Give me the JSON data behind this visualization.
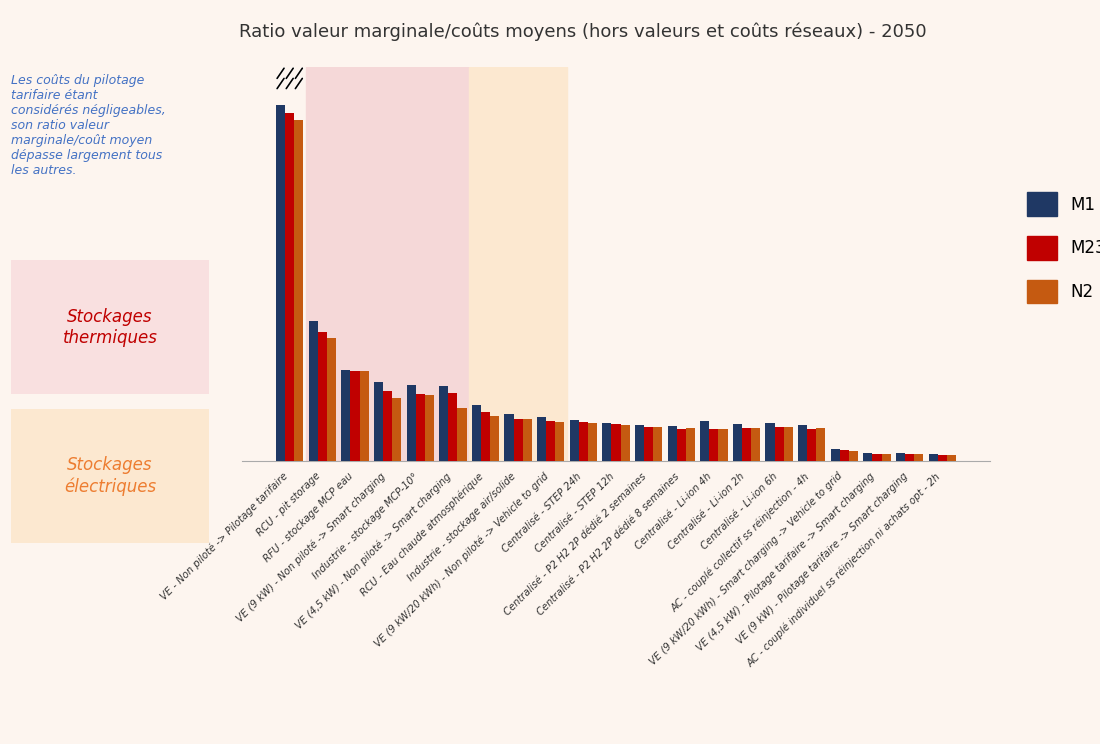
{
  "title": "Ratio valeur marginale/coûts moyens (hors valeurs et coûts réseaux) - 2050",
  "categories": [
    "VE - Non piloté -> Pilotage tarifaire",
    "RCU - pit storage",
    "RFU - stockage MCP eau",
    "VE (9 kW) - Non piloté -> Smart charging",
    "Industrie - stockage MCP-10°",
    "VE (4,5 kW) - Non piloté -> Smart charging",
    "RCU - Eau chaude atmosphérique",
    "Industrie - stockage air/solide",
    "VE (9 kW/20 kWh) - Non piloté -> Vehicle to grid",
    "Centralisé - STEP 24h",
    "Centralisé - STEP 12h",
    "Centralisé - P2 H2 2P dédié 2 semaines",
    "Centralisé - P2 H2 2P dédié 8 semaines",
    "Centralisé - Li-ion 4h",
    "Centralisé - Li-ion 2h",
    "Centralisé - Li-ion 6h",
    "AC - couplé collectif ss réinjection - 4h",
    "VE (9 kW/20 kWh) - Smart charging -> Vehicle to grid",
    "VE (4,5 kW) - Pilotage tarifaire -> Smart charging",
    "VE (9 kW) - Pilotage tarifaire -> Smart charging",
    "AC - couplé individuel ss réinjection ni achats opt - 2h"
  ],
  "M1": [
    14.0,
    5.5,
    3.6,
    3.1,
    3.0,
    2.95,
    2.2,
    1.85,
    1.75,
    1.62,
    1.52,
    1.42,
    1.38,
    1.6,
    1.45,
    1.52,
    1.42,
    0.5,
    0.32,
    0.32,
    0.27
  ],
  "M23": [
    13.7,
    5.1,
    3.55,
    2.75,
    2.65,
    2.7,
    1.92,
    1.68,
    1.6,
    1.56,
    1.46,
    1.35,
    1.28,
    1.25,
    1.3,
    1.35,
    1.25,
    0.45,
    0.3,
    0.3,
    0.24
  ],
  "N2": [
    13.4,
    4.85,
    3.55,
    2.5,
    2.6,
    2.1,
    1.78,
    1.65,
    1.55,
    1.5,
    1.42,
    1.35,
    1.32,
    1.25,
    1.3,
    1.35,
    1.3,
    0.42,
    0.28,
    0.28,
    0.23
  ],
  "M1_color": "#1f3864",
  "M23_color": "#c00000",
  "N2_color": "#c55a11",
  "bg_chart": "#fdf5ef",
  "bg_thermique_color": "#f5d8d8",
  "bg_electrique_color": "#fce8d0",
  "annotation_text": "Les coûts du pilotage\ntarifaire étant\nconsidérés négligeables,\nson ratio valeur\nmarginale/coût moyen\ndépasse largement tous\nles autres.",
  "label_thermique": "Stockages\nthermiques",
  "label_electrique": "Stockages\nélectriques",
  "thermique_bg": "#f9e0e0",
  "electrique_bg": "#fce8d0"
}
